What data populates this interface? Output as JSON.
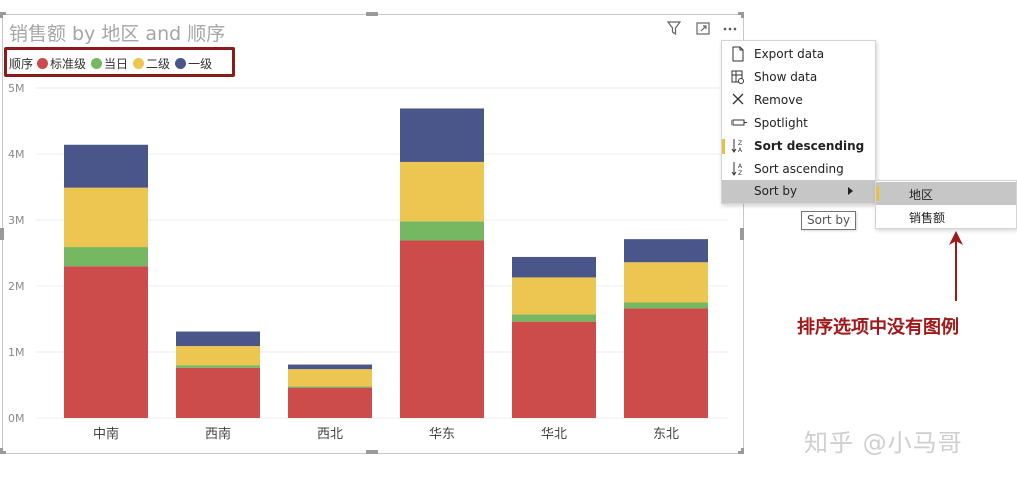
{
  "chart_data": {
    "type": "bar",
    "stacked": true,
    "title": "销售额 by 地区 and 顺序",
    "legend_title": "顺序",
    "legend_position": "top-left",
    "categories": [
      "中南",
      "西南",
      "西北",
      "华东",
      "华北",
      "东北"
    ],
    "series": [
      {
        "name": "标准级",
        "color": "#cc4b4b",
        "values": [
          2.3,
          0.76,
          0.46,
          2.69,
          1.46,
          1.66
        ]
      },
      {
        "name": "当日",
        "color": "#76b861",
        "values": [
          0.29,
          0.04,
          0.02,
          0.29,
          0.11,
          0.09
        ]
      },
      {
        "name": "二级",
        "color": "#ecc650",
        "values": [
          0.9,
          0.29,
          0.26,
          0.9,
          0.56,
          0.61
        ]
      },
      {
        "name": "一级",
        "color": "#4a5589",
        "values": [
          0.65,
          0.22,
          0.07,
          0.81,
          0.31,
          0.35
        ]
      }
    ],
    "y_ticks": [
      "0M",
      "1M",
      "2M",
      "3M",
      "4M",
      "5M"
    ],
    "ylim": [
      0,
      5
    ],
    "grid": true
  },
  "header_icons": [
    "filter-icon",
    "focus-mode-icon",
    "more-options-icon"
  ],
  "context_menu": {
    "items": [
      {
        "icon": "export-data-icon",
        "label": "Export data"
      },
      {
        "icon": "show-data-icon",
        "label": "Show data"
      },
      {
        "icon": "remove-icon",
        "label": "Remove"
      },
      {
        "icon": "spotlight-icon",
        "label": "Spotlight"
      },
      {
        "icon": "sort-descending-icon",
        "label": "Sort descending"
      },
      {
        "icon": "sort-ascending-icon",
        "label": "Sort ascending"
      },
      {
        "icon": "",
        "label": "Sort by"
      }
    ]
  },
  "submenu": {
    "items": [
      {
        "label": "地区"
      },
      {
        "label": "销售额"
      }
    ]
  },
  "tooltip": "Sort by",
  "annotation": "排序选项中没有图例",
  "watermark": "知乎 @小马哥",
  "colors": {
    "highlight": "#e8c044",
    "annotation": "#a01818",
    "legend_box": "#8b1a1a"
  }
}
